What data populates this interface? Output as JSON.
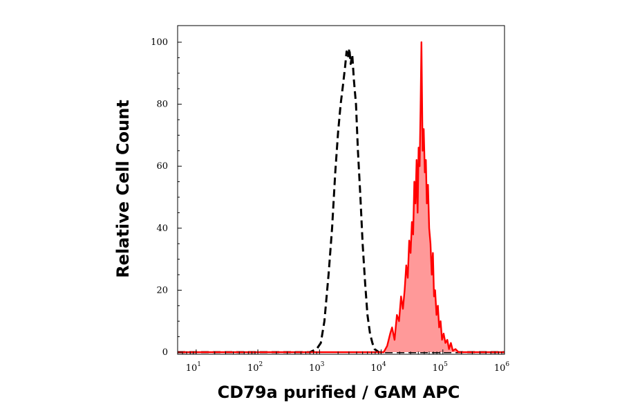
{
  "chart_data": {
    "type": "area",
    "title": "",
    "xlabel": "CD79a purified / GAM APC",
    "ylabel": "Relative Cell Count",
    "x_scale": "log",
    "xlim": [
      5,
      1000000
    ],
    "ylim": [
      0,
      100
    ],
    "grid": false,
    "x_ticks": [
      {
        "value": 10,
        "base": "10",
        "exp": "1"
      },
      {
        "value": 100,
        "base": "10",
        "exp": "2"
      },
      {
        "value": 1000,
        "base": "10",
        "exp": "3"
      },
      {
        "value": 10000,
        "base": "10",
        "exp": "4"
      },
      {
        "value": 100000,
        "base": "10",
        "exp": "5"
      },
      {
        "value": 1000000,
        "base": "10",
        "exp": "6"
      }
    ],
    "y_ticks": [
      "0",
      "20",
      "40",
      "60",
      "80",
      "100"
    ],
    "series": [
      {
        "style": "dashed",
        "color": "#000000",
        "fill": false,
        "x": [
          5,
          700,
          900,
          1050,
          1200,
          1400,
          1600,
          1800,
          2000,
          2200,
          2400,
          2600,
          2750,
          2900,
          3050,
          3200,
          3400,
          3600,
          3900,
          4200,
          4600,
          5000,
          5500,
          6000,
          6600,
          7200,
          7800,
          8500,
          9200,
          1000000
        ],
        "y": [
          0,
          0,
          1,
          3,
          10,
          25,
          40,
          58,
          71,
          80,
          86,
          92,
          97,
          95,
          98,
          93,
          96,
          88,
          80,
          65,
          50,
          35,
          22,
          12,
          6,
          3,
          1,
          0.5,
          0,
          0
        ]
      },
      {
        "style": "solid",
        "color": "#ff0000",
        "fill": true,
        "fill_color": "#ff9999",
        "x": [
          5,
          11000,
          12500,
          14000,
          15000,
          16500,
          18000,
          19500,
          21000,
          22500,
          24000,
          25500,
          27000,
          28500,
          30000,
          31500,
          33000,
          34500,
          36000,
          37500,
          39000,
          40500,
          42000,
          43500,
          45000,
          47000,
          49000,
          51000,
          53000,
          55000,
          57500,
          60000,
          63000,
          66000,
          69000,
          72000,
          75000,
          79000,
          83000,
          87000,
          92000,
          97000,
          103000,
          110000,
          118000,
          126000,
          135000,
          145000,
          160000,
          180000,
          1000000
        ],
        "y": [
          0,
          0,
          2,
          6,
          8,
          4,
          12,
          10,
          18,
          14,
          20,
          28,
          24,
          36,
          32,
          42,
          38,
          55,
          48,
          62,
          45,
          66,
          60,
          78,
          100,
          65,
          72,
          58,
          62,
          48,
          54,
          40,
          35,
          25,
          32,
          18,
          20,
          12,
          15,
          8,
          10,
          4,
          6,
          3,
          4,
          1,
          3,
          0.5,
          1,
          0,
          0
        ]
      }
    ]
  }
}
